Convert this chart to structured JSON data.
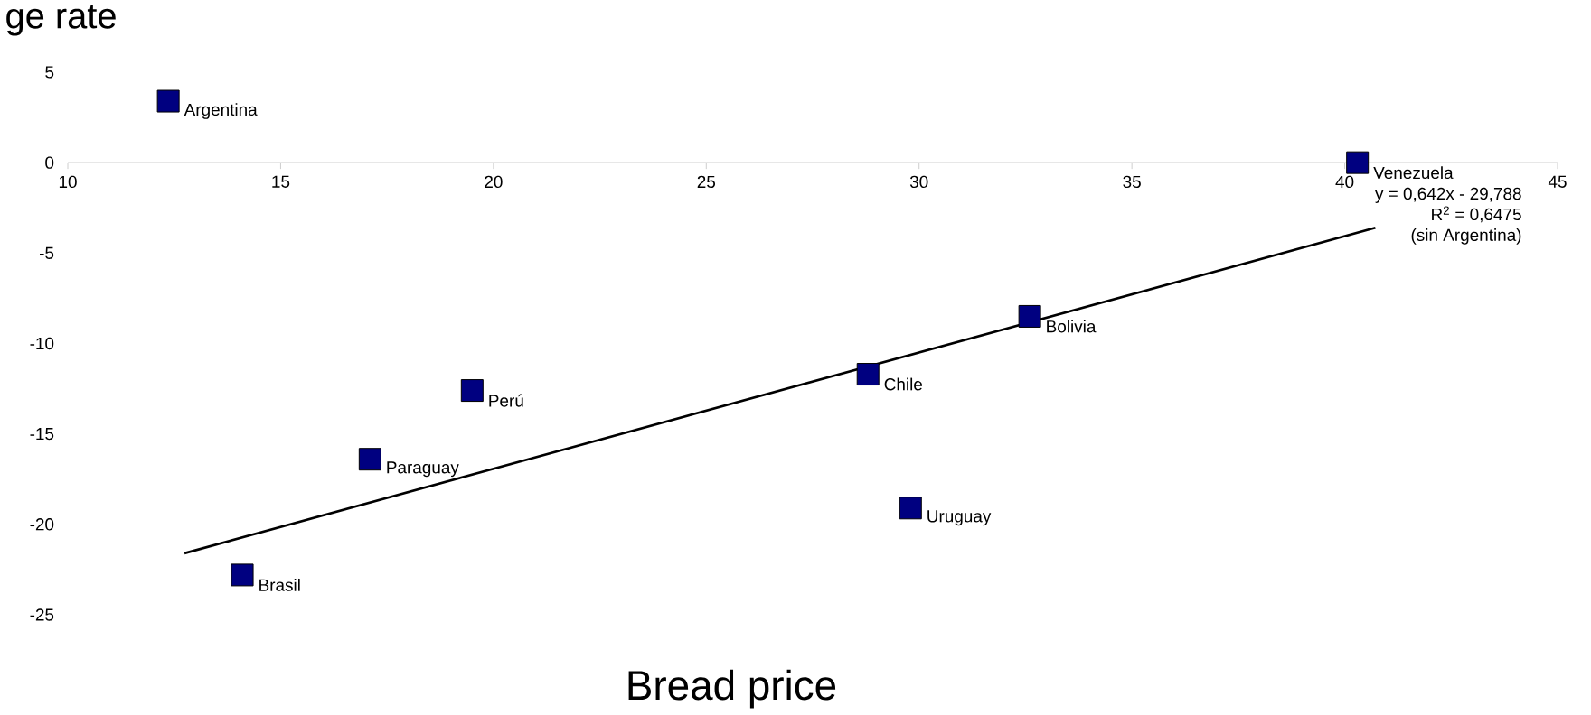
{
  "chart_data": {
    "type": "scatter",
    "xlabel": "Bread price",
    "ylabel": "ge rate",
    "xlim": [
      10,
      45
    ],
    "xticks": [
      10,
      15,
      20,
      25,
      30,
      35,
      40,
      45
    ],
    "ylim": [
      -25,
      5
    ],
    "yticks": [
      -25,
      -20,
      -15,
      -10,
      -5,
      0,
      5
    ],
    "series": [
      {
        "name": "Argentina",
        "marker": "square",
        "color": "#000080",
        "x": [
          12.36
        ],
        "values": [
          3.4
        ]
      },
      {
        "name": "Venezuela",
        "marker": "square",
        "color": "#000080",
        "x": [
          40.3
        ],
        "values": [
          0.0
        ]
      },
      {
        "name": "Bolivia",
        "marker": "square",
        "color": "#000080",
        "x": [
          32.6
        ],
        "values": [
          -8.5
        ]
      },
      {
        "name": "Chile",
        "marker": "square",
        "color": "#000080",
        "x": [
          28.8
        ],
        "values": [
          -11.7
        ]
      },
      {
        "name": "Perú",
        "marker": "square",
        "color": "#000080",
        "x": [
          19.5
        ],
        "values": [
          -12.6
        ]
      },
      {
        "name": "Paraguay",
        "marker": "square",
        "color": "#000080",
        "x": [
          17.1
        ],
        "values": [
          -16.4
        ]
      },
      {
        "name": "Uruguay",
        "marker": "square",
        "color": "#000080",
        "x": [
          29.8
        ],
        "values": [
          -19.1
        ]
      },
      {
        "name": "Brasil",
        "marker": "square",
        "color": "#000080",
        "x": [
          14.1
        ],
        "values": [
          -22.8
        ]
      },
      {
        "type": "line",
        "marker": "none",
        "color": "#000000",
        "x": [
          12.74,
          40.72
        ],
        "values": [
          -21.6,
          -3.6
        ]
      }
    ],
    "annotations": [
      "y = 0,642x - 29,788",
      "R$^{2}$ = 0,6475",
      "(sin Argentina)"
    ]
  }
}
